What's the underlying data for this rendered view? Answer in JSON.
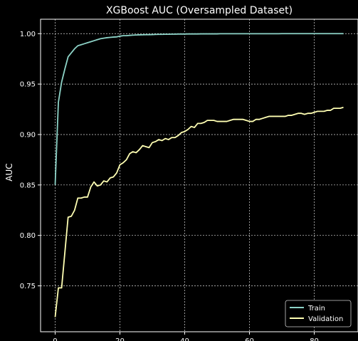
{
  "chart_data": {
    "type": "line",
    "title": "XGBoost AUC (Oversampled Dataset)",
    "xlabel": "",
    "ylabel": "AUC",
    "xlim": [
      -4.5,
      93.5
    ],
    "ylim": [
      0.7045,
      1.0143
    ],
    "xticks": [
      0,
      20,
      40,
      60,
      80
    ],
    "yticks": [
      0.75,
      0.8,
      0.85,
      0.9,
      0.95,
      1.0
    ],
    "ytick_labels": [
      "0.75",
      "0.80",
      "0.85",
      "0.90",
      "0.95",
      "1.00"
    ],
    "grid": true,
    "legend_position": "bottom-right",
    "series": [
      {
        "name": "Train",
        "color": "#8dd3c7",
        "x": [
          0,
          1,
          2,
          3,
          4,
          5,
          6,
          7,
          8,
          9,
          10,
          11,
          12,
          13,
          14,
          15,
          16,
          17,
          18,
          19,
          20,
          21,
          22,
          23,
          24,
          25,
          26,
          27,
          28,
          29,
          30,
          31,
          32,
          33,
          34,
          35,
          36,
          37,
          38,
          39,
          40,
          41,
          42,
          43,
          44,
          45,
          46,
          47,
          48,
          49,
          50,
          51,
          52,
          53,
          54,
          55,
          56,
          57,
          58,
          59,
          60,
          61,
          62,
          63,
          64,
          65,
          66,
          67,
          68,
          69,
          70,
          71,
          72,
          73,
          74,
          75,
          76,
          77,
          78,
          79,
          80,
          81,
          82,
          83,
          84,
          85,
          86,
          87,
          88,
          89
        ],
        "y": [
          0.85,
          0.932,
          0.952,
          0.965,
          0.977,
          0.981,
          0.985,
          0.988,
          0.989,
          0.99,
          0.991,
          0.992,
          0.993,
          0.994,
          0.995,
          0.9955,
          0.996,
          0.9963,
          0.9966,
          0.9968,
          0.9975,
          0.998,
          0.998,
          0.9983,
          0.9985,
          0.9987,
          0.9988,
          0.9989,
          0.999,
          0.999,
          0.9991,
          0.9992,
          0.9993,
          0.9993,
          0.9994,
          0.9994,
          0.9995,
          0.9995,
          0.9996,
          0.9996,
          0.9996,
          0.9997,
          0.9997,
          0.9997,
          0.9997,
          0.9998,
          0.9998,
          0.9998,
          0.9998,
          0.9998,
          0.9998,
          0.9999,
          0.9999,
          0.9999,
          0.9999,
          0.9999,
          0.9999,
          0.9999,
          0.9999,
          0.9999,
          0.9999,
          0.9999,
          0.9999,
          0.9999,
          0.9999,
          0.9999,
          0.9999,
          0.9999,
          0.9999,
          0.9999,
          1.0,
          1.0,
          1.0,
          1.0,
          1.0,
          1.0,
          1.0,
          1.0,
          1.0,
          1.0,
          1.0,
          1.0,
          1.0,
          1.0,
          1.0,
          1.0,
          1.0,
          1.0,
          1.0,
          1.0
        ]
      },
      {
        "name": "Validation",
        "color": "#ffffb3",
        "x": [
          0,
          1,
          2,
          3,
          4,
          5,
          6,
          7,
          8,
          9,
          10,
          11,
          12,
          13,
          14,
          15,
          16,
          17,
          18,
          19,
          20,
          21,
          22,
          23,
          24,
          25,
          26,
          27,
          28,
          29,
          30,
          31,
          32,
          33,
          34,
          35,
          36,
          37,
          38,
          39,
          40,
          41,
          42,
          43,
          44,
          45,
          46,
          47,
          48,
          49,
          50,
          51,
          52,
          53,
          54,
          55,
          56,
          57,
          58,
          59,
          60,
          61,
          62,
          63,
          64,
          65,
          66,
          67,
          68,
          69,
          70,
          71,
          72,
          73,
          74,
          75,
          76,
          77,
          78,
          79,
          80,
          81,
          82,
          83,
          84,
          85,
          86,
          87,
          88,
          89
        ],
        "y": [
          0.719,
          0.748,
          0.748,
          0.783,
          0.818,
          0.819,
          0.825,
          0.837,
          0.837,
          0.838,
          0.838,
          0.848,
          0.853,
          0.849,
          0.85,
          0.854,
          0.853,
          0.857,
          0.858,
          0.862,
          0.87,
          0.872,
          0.875,
          0.881,
          0.883,
          0.882,
          0.885,
          0.889,
          0.888,
          0.887,
          0.892,
          0.893,
          0.895,
          0.894,
          0.896,
          0.895,
          0.897,
          0.897,
          0.899,
          0.902,
          0.903,
          0.905,
          0.908,
          0.907,
          0.911,
          0.911,
          0.912,
          0.914,
          0.914,
          0.914,
          0.913,
          0.913,
          0.913,
          0.913,
          0.914,
          0.915,
          0.915,
          0.915,
          0.915,
          0.914,
          0.913,
          0.913,
          0.915,
          0.915,
          0.916,
          0.917,
          0.918,
          0.918,
          0.918,
          0.918,
          0.918,
          0.918,
          0.919,
          0.919,
          0.92,
          0.921,
          0.921,
          0.92,
          0.921,
          0.921,
          0.922,
          0.923,
          0.923,
          0.923,
          0.924,
          0.924,
          0.926,
          0.926,
          0.926,
          0.927
        ]
      }
    ]
  }
}
